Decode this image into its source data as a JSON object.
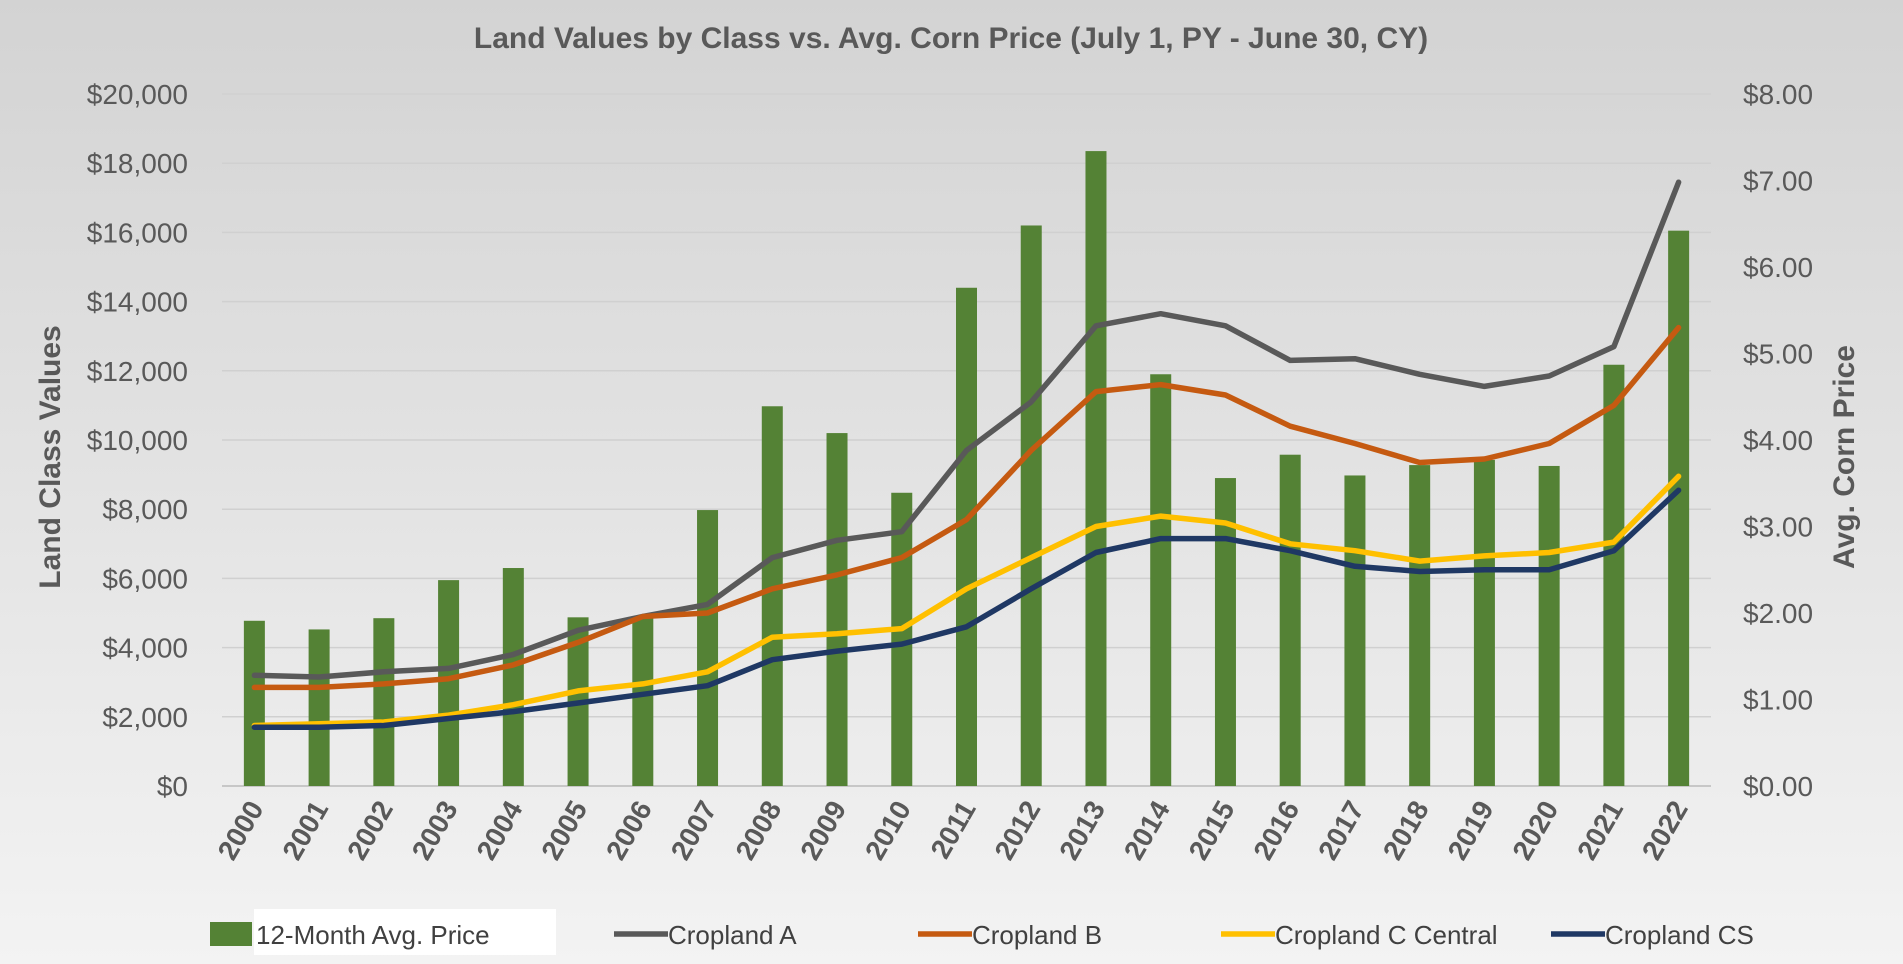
{
  "chart_data": {
    "type": "bar",
    "title": "Land Values by Class vs. Avg. Corn Price (July 1, PY - June 30, CY)",
    "ylabel": "Land Class Values",
    "y2label": "Avg. Corn Price",
    "ylim": [
      0,
      20000
    ],
    "y2lim": [
      0,
      8
    ],
    "yticks": [
      "$0",
      "$2,000",
      "$4,000",
      "$6,000",
      "$8,000",
      "$10,000",
      "$12,000",
      "$14,000",
      "$16,000",
      "$18,000",
      "$20,000"
    ],
    "y2ticks": [
      "$0.00",
      "$1.00",
      "$2.00",
      "$3.00",
      "$4.00",
      "$5.00",
      "$6.00",
      "$7.00",
      "$8.00"
    ],
    "categories": [
      "2000",
      "2001",
      "2002",
      "2003",
      "2004",
      "2005",
      "2006",
      "2007",
      "2008",
      "2009",
      "2010",
      "2011",
      "2012",
      "2013",
      "2014",
      "2015",
      "2016",
      "2017",
      "2018",
      "2019",
      "2020",
      "2021",
      "2022"
    ],
    "grid": true,
    "legend_position": "bottom",
    "bar_series": {
      "name": "12-Month Avg. Price",
      "axis": "right",
      "color": "#548235",
      "values": [
        1.91,
        1.81,
        1.94,
        2.38,
        2.52,
        1.95,
        1.96,
        3.19,
        4.39,
        4.08,
        3.39,
        5.76,
        6.48,
        7.34,
        4.76,
        3.56,
        3.83,
        3.59,
        3.71,
        3.77,
        3.7,
        4.87,
        6.42
      ]
    },
    "series": [
      {
        "name": "Cropland A",
        "color": "#595959",
        "values": [
          3200,
          3150,
          3300,
          3400,
          3800,
          4500,
          4900,
          5250,
          6600,
          7100,
          7350,
          9700,
          11100,
          13300,
          13650,
          13300,
          12300,
          12350,
          11900,
          11550,
          11850,
          12700,
          17450
        ]
      },
      {
        "name": "Cropland B",
        "color": "#c55a11",
        "values": [
          2850,
          2850,
          2950,
          3100,
          3500,
          4150,
          4900,
          5000,
          5700,
          6100,
          6600,
          7700,
          9700,
          11400,
          11600,
          11300,
          10400,
          9900,
          9350,
          9450,
          9900,
          11000,
          13250
        ]
      },
      {
        "name": "Cropland C Central",
        "color": "#ffc000",
        "values": [
          1750,
          1800,
          1850,
          2050,
          2350,
          2750,
          2950,
          3300,
          4300,
          4400,
          4550,
          5700,
          6600,
          7500,
          7800,
          7600,
          7000,
          6800,
          6500,
          6650,
          6750,
          7050,
          8950
        ]
      },
      {
        "name": "Cropland CS",
        "color": "#1f3864",
        "values": [
          1700,
          1700,
          1750,
          1950,
          2150,
          2400,
          2650,
          2900,
          3650,
          3900,
          4100,
          4600,
          5700,
          6750,
          7150,
          7150,
          6800,
          6350,
          6200,
          6250,
          6250,
          6800,
          8550
        ]
      }
    ]
  }
}
